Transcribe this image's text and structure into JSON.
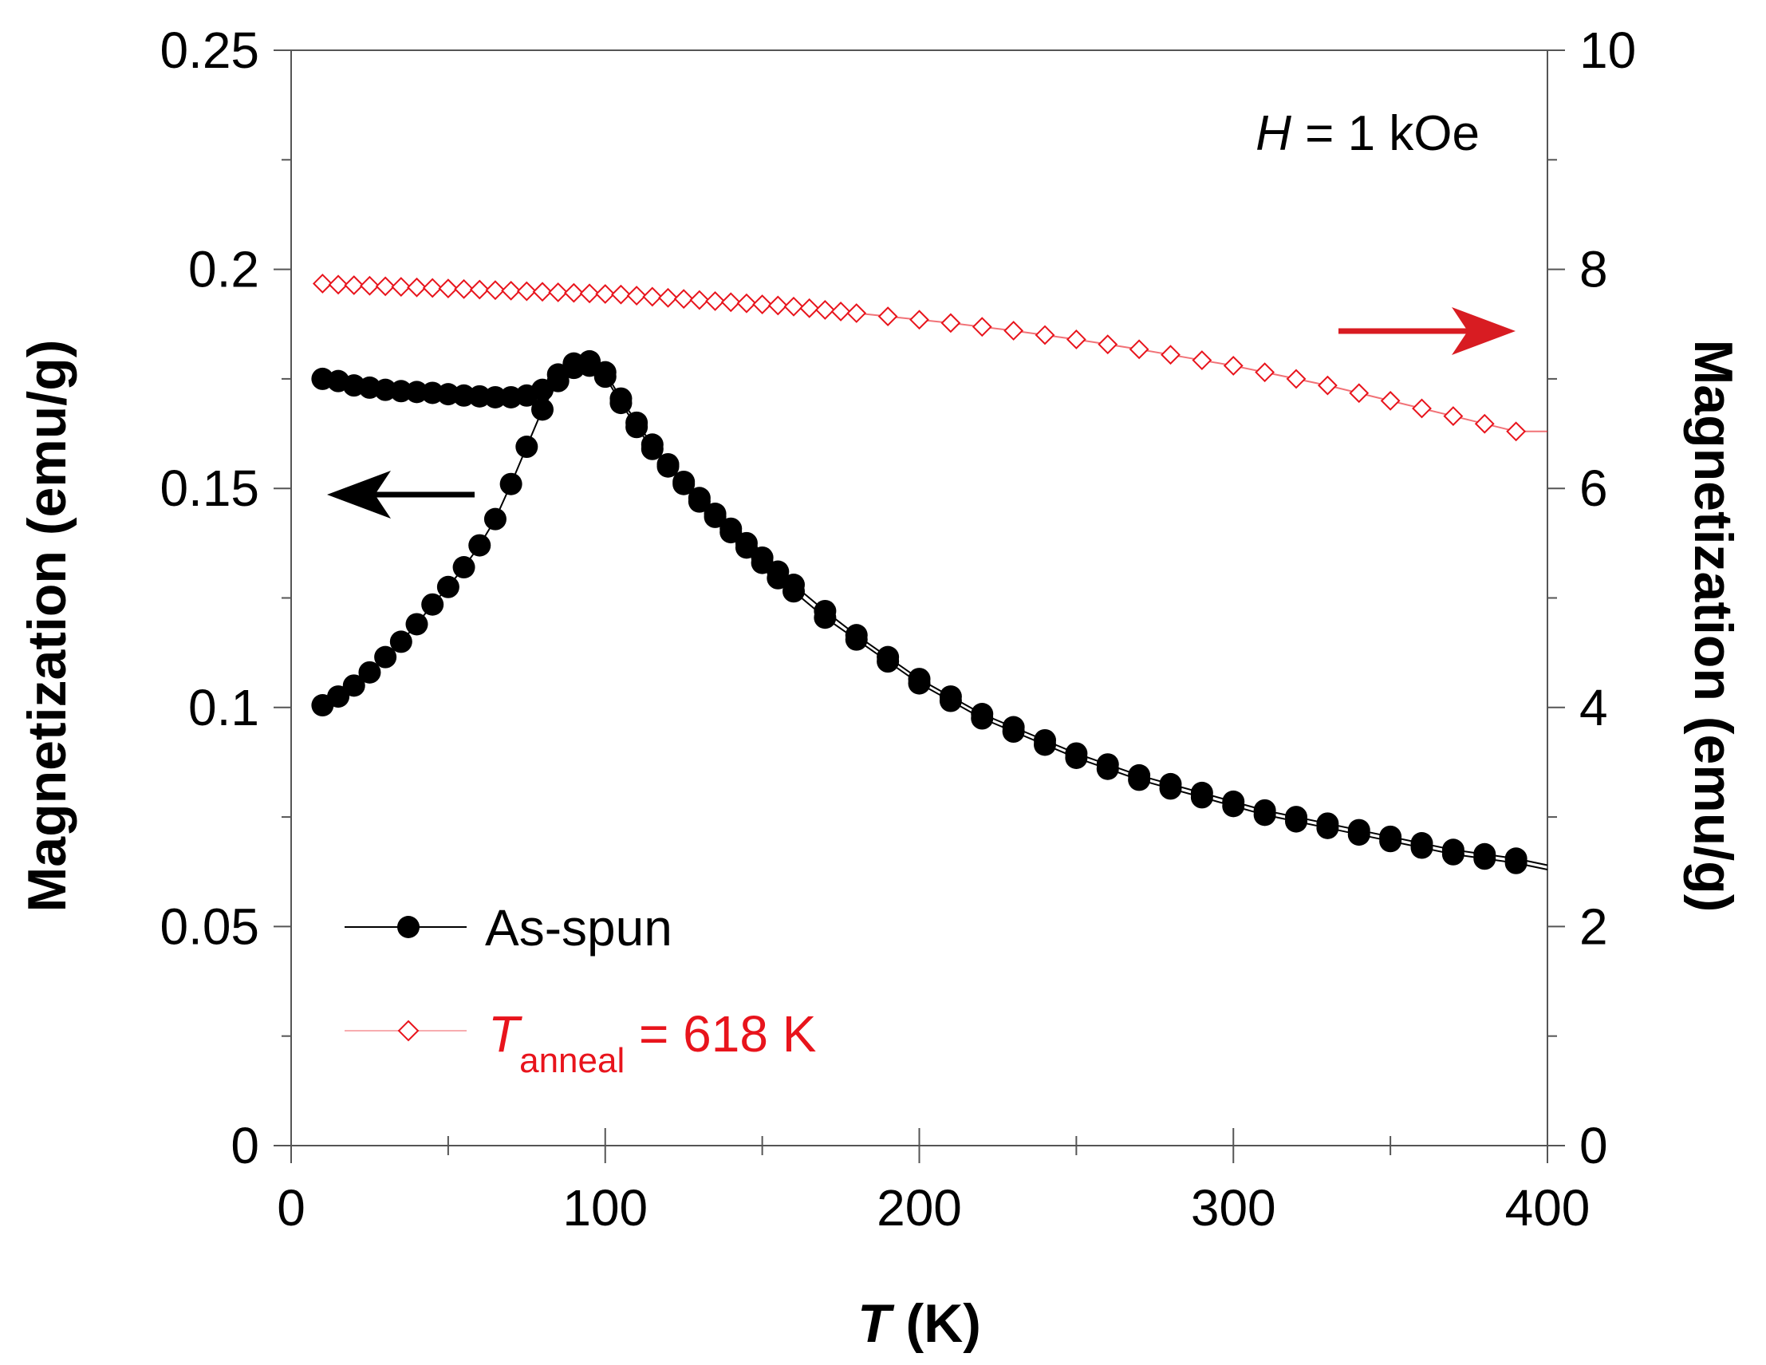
{
  "chart_data": {
    "type": "line",
    "xlabel_italic": "T",
    "xlabel_rest": " (K)",
    "ylabel_left": "Magnetization (emu/g)",
    "ylabel_right": "Magnetization (emu/g)",
    "xlim": [
      0,
      400
    ],
    "ylim_left": [
      0,
      0.25
    ],
    "ylim_right": [
      0,
      10
    ],
    "x_ticks": [
      "0",
      "100",
      "200",
      "300",
      "400"
    ],
    "y_left_ticks": [
      "0",
      "0.05",
      "0.1",
      "0.15",
      "0.2",
      "0.25"
    ],
    "y_right_ticks": [
      "0",
      "2",
      "4",
      "6",
      "8",
      "10"
    ],
    "annotation": {
      "italic": "H",
      "rest": " = 1 kOe"
    },
    "colors": {
      "as_spun": "#000000",
      "annealed": "#e8141c",
      "axis": "#555555"
    },
    "series": [
      {
        "name": "As-spun",
        "axis": "left",
        "marker": "filled-circle",
        "x": [
          10,
          15,
          20,
          25,
          30,
          35,
          40,
          45,
          50,
          55,
          60,
          65,
          70,
          75,
          80,
          85,
          90,
          95,
          100,
          105,
          110,
          115,
          120,
          125,
          130,
          135,
          140,
          145,
          150,
          155,
          160,
          170,
          180,
          190,
          200,
          210,
          220,
          230,
          240,
          250,
          260,
          270,
          280,
          290,
          300,
          310,
          320,
          330,
          340,
          350,
          360,
          370,
          380,
          390
        ],
        "fc": [
          0.1005,
          0.1025,
          0.105,
          0.108,
          0.1115,
          0.115,
          0.119,
          0.1235,
          0.1275,
          0.132,
          0.137,
          0.143,
          0.151,
          0.1595,
          0.168,
          0.1745,
          0.1775,
          0.178,
          0.1755,
          0.1695,
          0.164,
          0.159,
          0.155,
          0.151,
          0.147,
          0.1435,
          0.14,
          0.1365,
          0.133,
          0.1295,
          0.1265,
          0.1205,
          0.1155,
          0.1105,
          0.1055,
          0.1015,
          0.0975,
          0.0945,
          0.0915,
          0.0885,
          0.086,
          0.0835,
          0.0815,
          0.0795,
          0.0775,
          0.0755,
          0.074,
          0.0725,
          0.071,
          0.0695,
          0.068,
          0.0665,
          0.0655,
          0.0645
        ],
        "zfc": [
          0.175,
          0.1745,
          0.1735,
          0.173,
          0.1725,
          0.1722,
          0.172,
          0.1718,
          0.1715,
          0.1712,
          0.171,
          0.1708,
          0.1708,
          0.1712,
          0.1725,
          0.176,
          0.1785,
          0.179,
          0.1765,
          0.1705,
          0.165,
          0.16,
          0.1555,
          0.1515,
          0.1478,
          0.1442,
          0.1408,
          0.1375,
          0.1342,
          0.131,
          0.128,
          0.122,
          0.1165,
          0.1115,
          0.1065,
          0.1025,
          0.0985,
          0.0955,
          0.0925,
          0.0895,
          0.087,
          0.0845,
          0.0825,
          0.0805,
          0.0785,
          0.0765,
          0.075,
          0.0735,
          0.072,
          0.0705,
          0.069,
          0.0675,
          0.0665,
          0.0655
        ]
      },
      {
        "name_italic": "T",
        "name_sub": "anneal",
        "name_rest": " = 618 K",
        "axis": "right",
        "marker": "open-diamond",
        "x": [
          10,
          15,
          20,
          25,
          30,
          35,
          40,
          45,
          50,
          55,
          60,
          65,
          70,
          75,
          80,
          85,
          90,
          95,
          100,
          105,
          110,
          115,
          120,
          125,
          130,
          135,
          140,
          145,
          150,
          155,
          160,
          165,
          170,
          175,
          180,
          190,
          200,
          210,
          220,
          230,
          240,
          250,
          260,
          270,
          280,
          290,
          300,
          310,
          320,
          330,
          340,
          350,
          360,
          370,
          380,
          390
        ],
        "values": [
          7.87,
          7.86,
          7.855,
          7.85,
          7.845,
          7.84,
          7.835,
          7.83,
          7.825,
          7.82,
          7.815,
          7.81,
          7.805,
          7.8,
          7.795,
          7.79,
          7.785,
          7.78,
          7.775,
          7.77,
          7.76,
          7.75,
          7.74,
          7.73,
          7.72,
          7.71,
          7.7,
          7.69,
          7.68,
          7.67,
          7.66,
          7.645,
          7.63,
          7.615,
          7.6,
          7.57,
          7.54,
          7.51,
          7.475,
          7.44,
          7.4,
          7.36,
          7.315,
          7.27,
          7.22,
          7.17,
          7.12,
          7.06,
          7.0,
          6.94,
          6.87,
          6.8,
          6.73,
          6.66,
          6.59,
          6.52
        ]
      }
    ]
  }
}
